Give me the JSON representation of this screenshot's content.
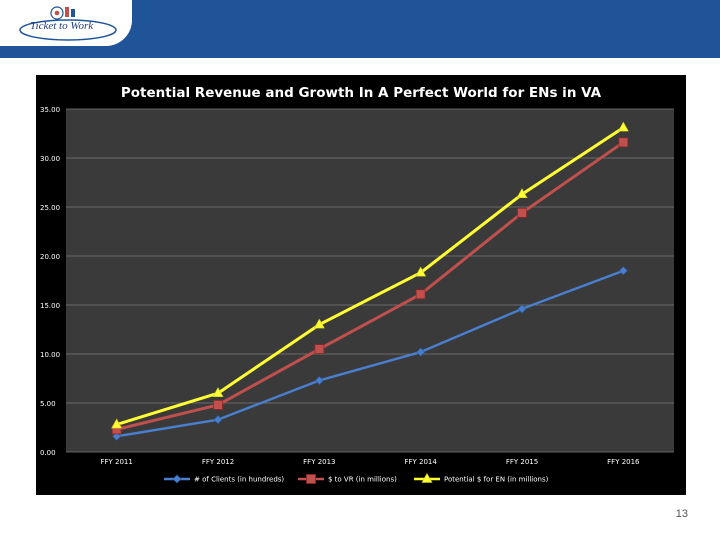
{
  "header": {
    "logo_text": "Ticket to Work"
  },
  "colors": {
    "band": "#1f5499",
    "plot_bg": "#3a3a3a",
    "panel_bg": "#000000",
    "clients": "#4a7fd0",
    "vr": "#c0504d",
    "en": "#ffff33"
  },
  "chart_data": {
    "type": "line",
    "title": "Potential Revenue and Growth In A Perfect World for ENs in VA",
    "xlabel": "",
    "ylabel": "",
    "ylim": [
      0,
      35
    ],
    "yticks": [
      "0.00",
      "5.00",
      "10.00",
      "15.00",
      "20.00",
      "25.00",
      "30.00",
      "35.00"
    ],
    "categories": [
      "FFY 2011",
      "FFY 2012",
      "FFY 2013",
      "FFY 2014",
      "FFY 2015",
      "FFY 2016"
    ],
    "grid": true,
    "legend": "bottom",
    "series": [
      {
        "name": "# of Clients (in hundreds)",
        "marker": "diamond",
        "values": [
          1.6,
          3.3,
          7.3,
          10.2,
          14.6,
          18.5
        ]
      },
      {
        "name": "$ to VR (in millions)",
        "marker": "square",
        "values": [
          2.3,
          4.8,
          10.5,
          16.1,
          24.4,
          31.6
        ]
      },
      {
        "name": "Potential $ for EN (in millions)",
        "marker": "triangle",
        "values": [
          2.8,
          6.0,
          13.0,
          18.3,
          26.3,
          33.1
        ]
      }
    ]
  },
  "footer": {
    "page_number": "13"
  }
}
